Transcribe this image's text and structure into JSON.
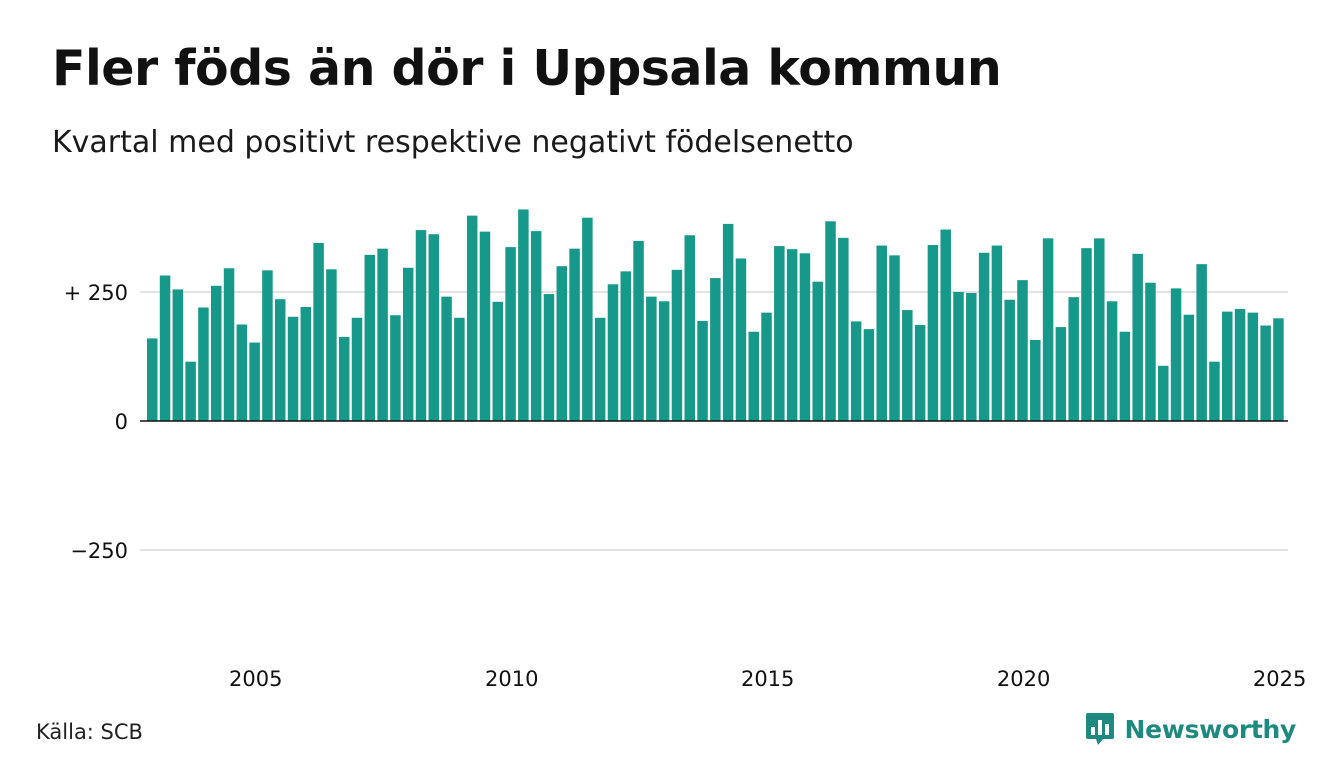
{
  "title": "Fler föds än dör i Uppsala kommun",
  "subtitle": "Kvartal med positivt respektive negativt födelsenetto",
  "source": "Källa: SCB",
  "brand": {
    "name": "Newsworthy",
    "logo_icon": "speech-bubble-bar-chart-icon",
    "color": "#1e8a7f"
  },
  "colors": {
    "bar": "#16998a",
    "grid": "#e2e2e2",
    "baseline": "#111111"
  },
  "chart_data": {
    "type": "bar",
    "ylim": [
      -360,
      380
    ],
    "yticks": [
      {
        "value": 250,
        "label": "+ 250"
      },
      {
        "value": 0,
        "label": "0"
      },
      {
        "value": -250,
        "label": "−250"
      }
    ],
    "xticks": [
      {
        "value": 2005,
        "label": "2005"
      },
      {
        "value": 2010,
        "label": "2010"
      },
      {
        "value": 2015,
        "label": "2015"
      },
      {
        "value": 2020,
        "label": "2020"
      },
      {
        "value": 2025,
        "label": "2025"
      }
    ],
    "x_start": 2003.0,
    "x_step": 0.25,
    "grid": true,
    "legend": "none",
    "values": [
      160,
      282,
      255,
      115,
      220,
      262,
      296,
      187,
      152,
      292,
      236,
      202,
      221,
      345,
      294,
      163,
      200,
      322,
      334,
      205,
      297,
      370,
      362,
      241,
      200,
      398,
      367,
      231,
      337,
      410,
      368,
      246,
      300,
      334,
      394,
      200,
      265,
      290,
      349,
      241,
      232,
      293,
      360,
      194,
      277,
      382,
      315,
      173,
      210,
      339,
      333,
      325,
      270,
      387,
      355,
      193,
      178,
      340,
      321,
      215,
      186,
      341,
      371,
      250,
      248,
      326,
      340,
      235,
      273,
      157,
      354,
      182,
      240,
      335,
      354,
      232,
      173,
      324,
      268,
      107,
      257,
      206,
      304,
      115,
      212,
      217,
      210,
      185,
      199
    ]
  }
}
